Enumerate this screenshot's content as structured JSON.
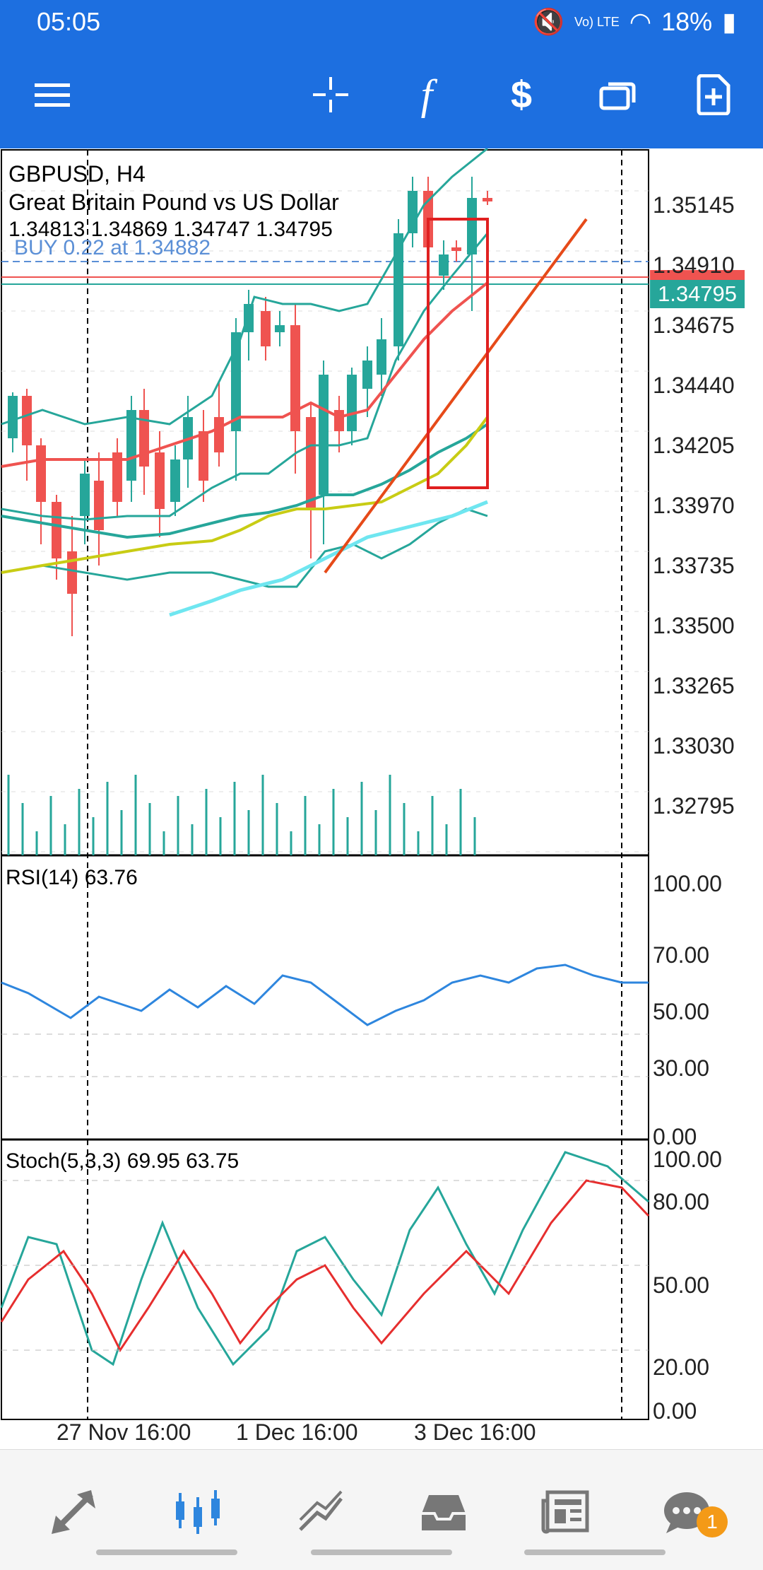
{
  "status": {
    "time": "05:05",
    "battery": "18%",
    "network": "Vo) LTE"
  },
  "toolbar": {
    "icons": [
      "menu-icon",
      "crosshair-icon",
      "indicators-icon",
      "trade-icon",
      "window-icon",
      "new-order-icon"
    ]
  },
  "chart": {
    "symbol": "GBPUSD, H4",
    "description": "Great Britain Pound vs US Dollar",
    "ohlc": "1.34813 1.34869 1.34747 1.34795",
    "position": "BUY 0.22 at 1.34882",
    "current_price": "1.34795",
    "price_ticks": [
      "1.35145",
      "1.34910",
      "1.34675",
      "1.34440",
      "1.34205",
      "1.33970",
      "1.33735",
      "1.33500",
      "1.33265",
      "1.33030",
      "1.32795"
    ],
    "rsi_label": "RSI(14) 63.76",
    "rsi_ticks": [
      "100.00",
      "70.00",
      "50.00",
      "30.00",
      "0.00"
    ],
    "stoch_label": "Stoch(5,3,3) 69.95 63.75",
    "stoch_ticks": [
      "100.00",
      "80.00",
      "50.00",
      "20.00",
      "0.00"
    ],
    "time_ticks": [
      "27 Nov 16:00",
      "1 Dec 16:00",
      "3 Dec 16:00"
    ]
  },
  "colors": {
    "toolbar": "#1d6fe0",
    "bull": "#26a69a",
    "bear": "#ef5350",
    "rsi_line": "#2e86de",
    "stoch_main": "#26a69a",
    "stoch_signal": "#e62e2e",
    "highlight_box": "#e02020"
  },
  "nav": {
    "items": [
      "trade-icon",
      "chart-icon",
      "history-icon",
      "inbox-icon",
      "news-icon",
      "chat-icon"
    ],
    "chat_badge": "1"
  }
}
